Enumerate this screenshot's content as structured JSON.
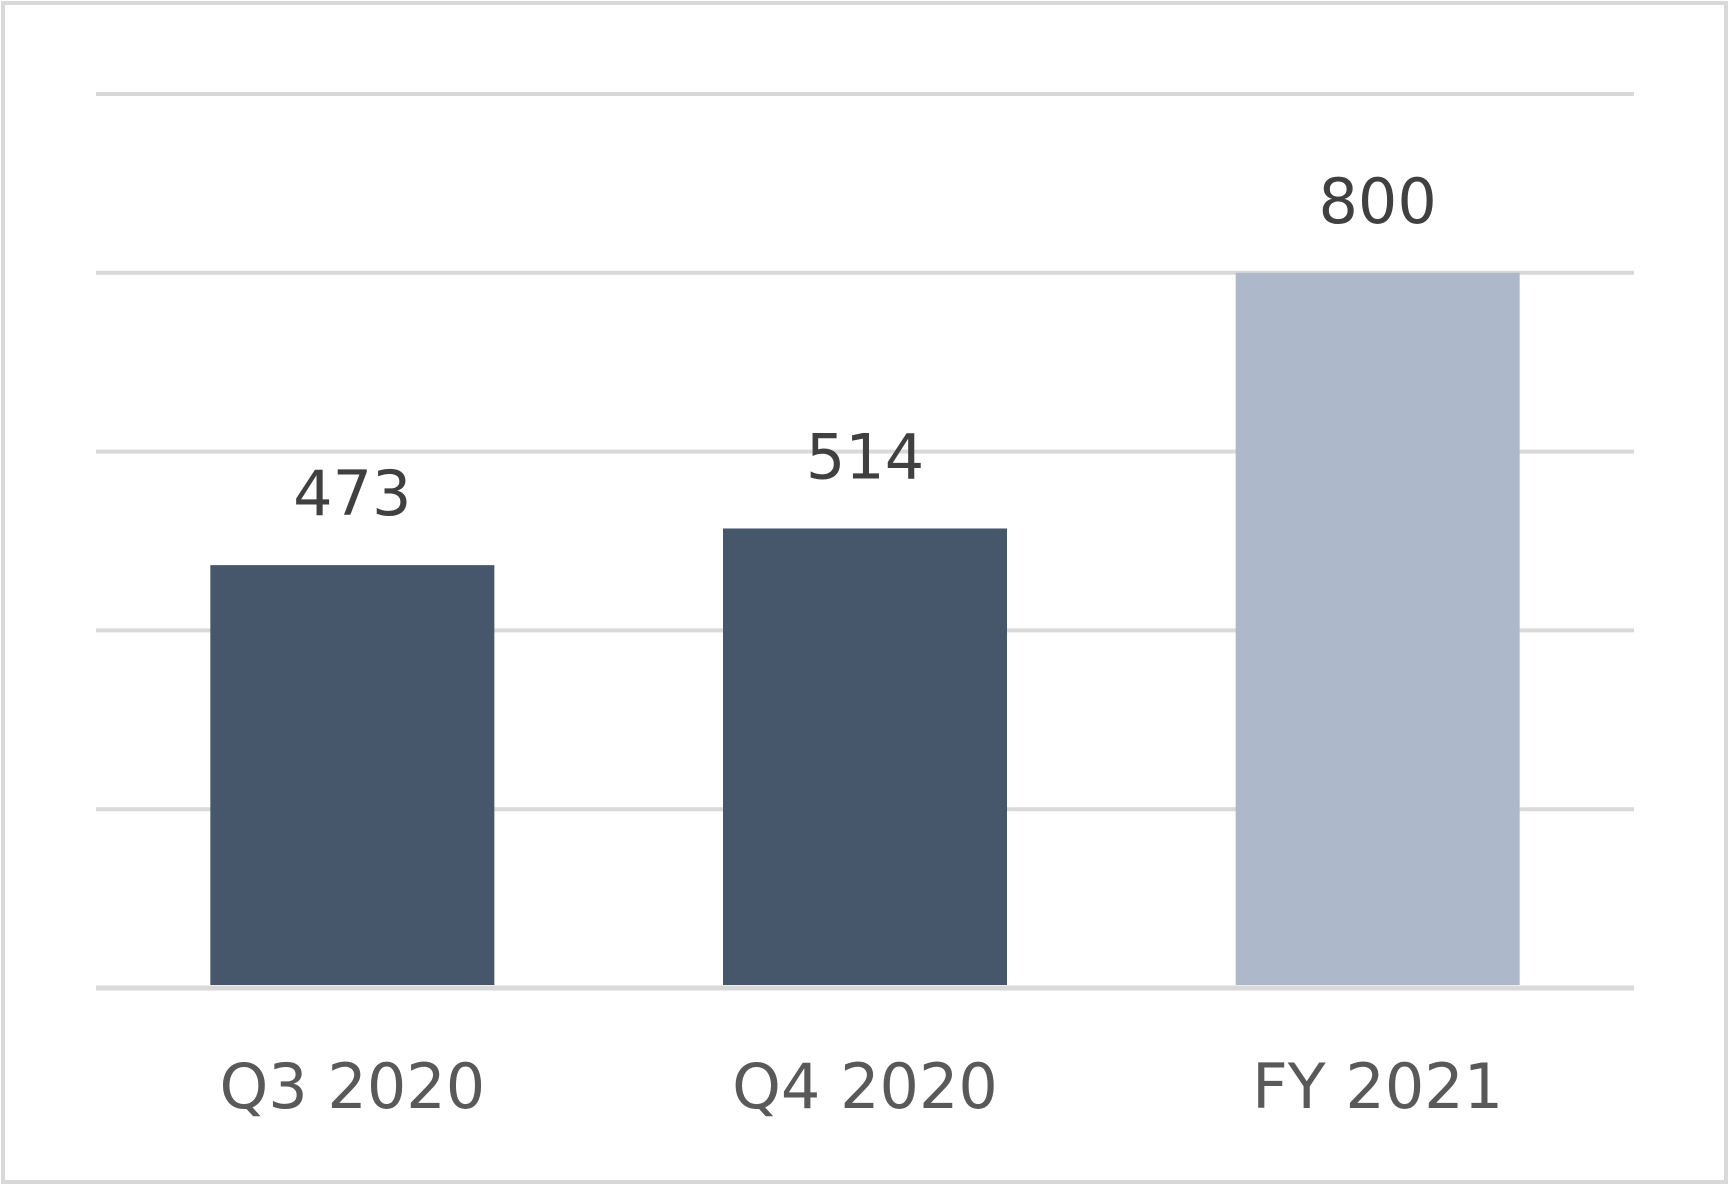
{
  "chart_data": {
    "type": "bar",
    "title": "",
    "xlabel": "",
    "ylabel": "",
    "categories": [
      "Q3 2020",
      "Q4 2020",
      "FY 2021"
    ],
    "values": [
      473,
      514,
      800
    ],
    "data_labels": [
      "473",
      "514",
      "800"
    ],
    "ylim": [
      0,
      1000
    ],
    "y_gridlines": [
      0,
      200,
      400,
      600,
      800,
      1000
    ],
    "y_tick_labels_shown": false,
    "grid": true,
    "legend": "none",
    "bar_colors": [
      "#46566B",
      "#46566B",
      "#ADB9CA"
    ],
    "colors": {
      "gridline": "#D9D9D9",
      "frame_border": "#D9D9D9",
      "label_text": "#404040",
      "tick_text": "#595959",
      "background": "#FFFFFF"
    }
  }
}
